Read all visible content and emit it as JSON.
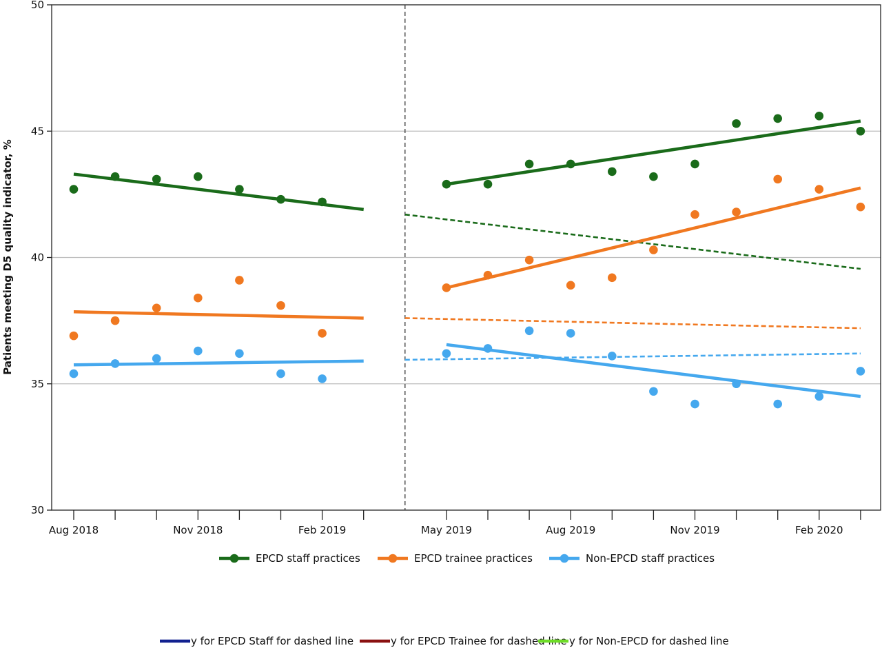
{
  "chart_data": {
    "type": "scatter",
    "ylabel": "Patients meeting D5 quality indicator, %",
    "xlabel": "",
    "ylim": [
      30,
      50
    ],
    "y_ticks": [
      30,
      35,
      40,
      45,
      50
    ],
    "grid": "horizontal",
    "x_positions": [
      "Aug 2018",
      "Sep 2018",
      "Oct 2018",
      "Nov 2018",
      "Dec 2018",
      "Jan 2019",
      "Feb 2019",
      "Mar 2019",
      "Apr 2019",
      "May 2019",
      "Jun 2019",
      "Jul 2019",
      "Aug 2019",
      "Sep 2019",
      "Oct 2019",
      "Nov 2019",
      "Dec 2019",
      "Jan 2020",
      "Feb 2020",
      "Mar 2020"
    ],
    "x_tick_labels": [
      "Aug 2018",
      "",
      "",
      "Nov 2018",
      "",
      "",
      "Feb 2019",
      "",
      "May 2019",
      "",
      "",
      "Aug 2019",
      "",
      "",
      "Nov 2019",
      "",
      "",
      "Feb 2020",
      ""
    ],
    "x_tick_dates": [
      "Aug 2018",
      "Sep 2018",
      "Oct 2018",
      "Nov 2018",
      "Dec 2018",
      "Jan 2019",
      "Feb 2019",
      "Mar 2019",
      "May 2019",
      "Jun 2019",
      "Jul 2019",
      "Aug 2019",
      "Sep 2019",
      "Oct 2019",
      "Nov 2019",
      "Dec 2019",
      "Jan 2020",
      "Feb 2020",
      "Mar 2020"
    ],
    "intervention_line": "Apr 2019",
    "series": [
      {
        "name": "EPCD staff practices",
        "color": "#1a6b1a",
        "points": [
          [
            "Aug 2018",
            42.7
          ],
          [
            "Sep 2018",
            43.2
          ],
          [
            "Oct 2018",
            43.1
          ],
          [
            "Nov 2018",
            43.2
          ],
          [
            "Dec 2018",
            42.7
          ],
          [
            "Jan 2019",
            42.3
          ],
          [
            "Feb 2019",
            42.2
          ],
          [
            "May 2019",
            42.9
          ],
          [
            "Jun 2019",
            42.9
          ],
          [
            "Jul 2019",
            43.7
          ],
          [
            "Aug 2019",
            43.7
          ],
          [
            "Sep 2019",
            43.4
          ],
          [
            "Oct 2019",
            43.2
          ],
          [
            "Nov 2019",
            43.7
          ],
          [
            "Dec 2019",
            45.3
          ],
          [
            "Jan 2020",
            45.5
          ],
          [
            "Feb 2020",
            45.6
          ],
          [
            "Mar 2020",
            45.0
          ]
        ],
        "trend_pre": [
          [
            "Aug 2018",
            43.3
          ],
          [
            "Mar 2019",
            41.9
          ]
        ],
        "trend_post": [
          [
            "May 2019",
            42.9
          ],
          [
            "Mar 2020",
            45.4
          ]
        ],
        "counterfactual": [
          [
            "Apr 2019",
            41.7
          ],
          [
            "Mar 2020",
            39.55
          ]
        ]
      },
      {
        "name": "EPCD trainee practices",
        "color": "#f07820",
        "points": [
          [
            "Aug 2018",
            36.9
          ],
          [
            "Sep 2018",
            37.5
          ],
          [
            "Oct 2018",
            38.0
          ],
          [
            "Nov 2018",
            38.4
          ],
          [
            "Dec 2018",
            39.1
          ],
          [
            "Jan 2019",
            38.1
          ],
          [
            "Feb 2019",
            37.0
          ],
          [
            "May 2019",
            38.8
          ],
          [
            "Jun 2019",
            39.3
          ],
          [
            "Jul 2019",
            39.9
          ],
          [
            "Aug 2019",
            38.9
          ],
          [
            "Sep 2019",
            39.2
          ],
          [
            "Oct 2019",
            40.3
          ],
          [
            "Nov 2019",
            41.7
          ],
          [
            "Dec 2019",
            41.8
          ],
          [
            "Jan 2020",
            43.1
          ],
          [
            "Feb 2020",
            42.7
          ],
          [
            "Mar 2020",
            42.0
          ]
        ],
        "trend_pre": [
          [
            "Aug 2018",
            37.85
          ],
          [
            "Mar 2019",
            37.6
          ]
        ],
        "trend_post": [
          [
            "May 2019",
            38.8
          ],
          [
            "Mar 2020",
            42.75
          ]
        ],
        "counterfactual": [
          [
            "Apr 2019",
            37.6
          ],
          [
            "Mar 2020",
            37.2
          ]
        ]
      },
      {
        "name": "Non-EPCD staff practices",
        "color": "#45a8ee",
        "points": [
          [
            "Aug 2018",
            35.4
          ],
          [
            "Sep 2018",
            35.8
          ],
          [
            "Oct 2018",
            36.0
          ],
          [
            "Nov 2018",
            36.3
          ],
          [
            "Dec 2018",
            36.2
          ],
          [
            "Jan 2019",
            35.4
          ],
          [
            "Feb 2019",
            35.2
          ],
          [
            "May 2019",
            36.2
          ],
          [
            "Jun 2019",
            36.4
          ],
          [
            "Jul 2019",
            37.1
          ],
          [
            "Aug 2019",
            37.0
          ],
          [
            "Sep 2019",
            36.1
          ],
          [
            "Oct 2019",
            34.7
          ],
          [
            "Nov 2019",
            34.2
          ],
          [
            "Dec 2019",
            35.0
          ],
          [
            "Jan 2020",
            34.2
          ],
          [
            "Feb 2020",
            34.5
          ],
          [
            "Mar 2020",
            35.5
          ]
        ],
        "trend_pre": [
          [
            "Aug 2018",
            35.75
          ],
          [
            "Mar 2019",
            35.9
          ]
        ],
        "trend_post": [
          [
            "May 2019",
            36.55
          ],
          [
            "Mar 2020",
            34.5
          ]
        ],
        "counterfactual": [
          [
            "Apr 2019",
            35.95
          ],
          [
            "Mar 2020",
            36.2
          ]
        ]
      }
    ],
    "legend": {
      "placement": "bottom",
      "items": [
        "EPCD staff practices",
        "EPCD trainee practices",
        "Non-EPCD staff practices"
      ]
    },
    "secondary_legend": {
      "items": [
        {
          "label": "y for EPCD Staff for dashed line",
          "color": "#11208f"
        },
        {
          "label": "y for EPCD Trainee for dashed line",
          "color": "#8a1010"
        },
        {
          "label": "y for Non-EPCD for dashed line",
          "color": "#6edc28"
        }
      ]
    }
  }
}
